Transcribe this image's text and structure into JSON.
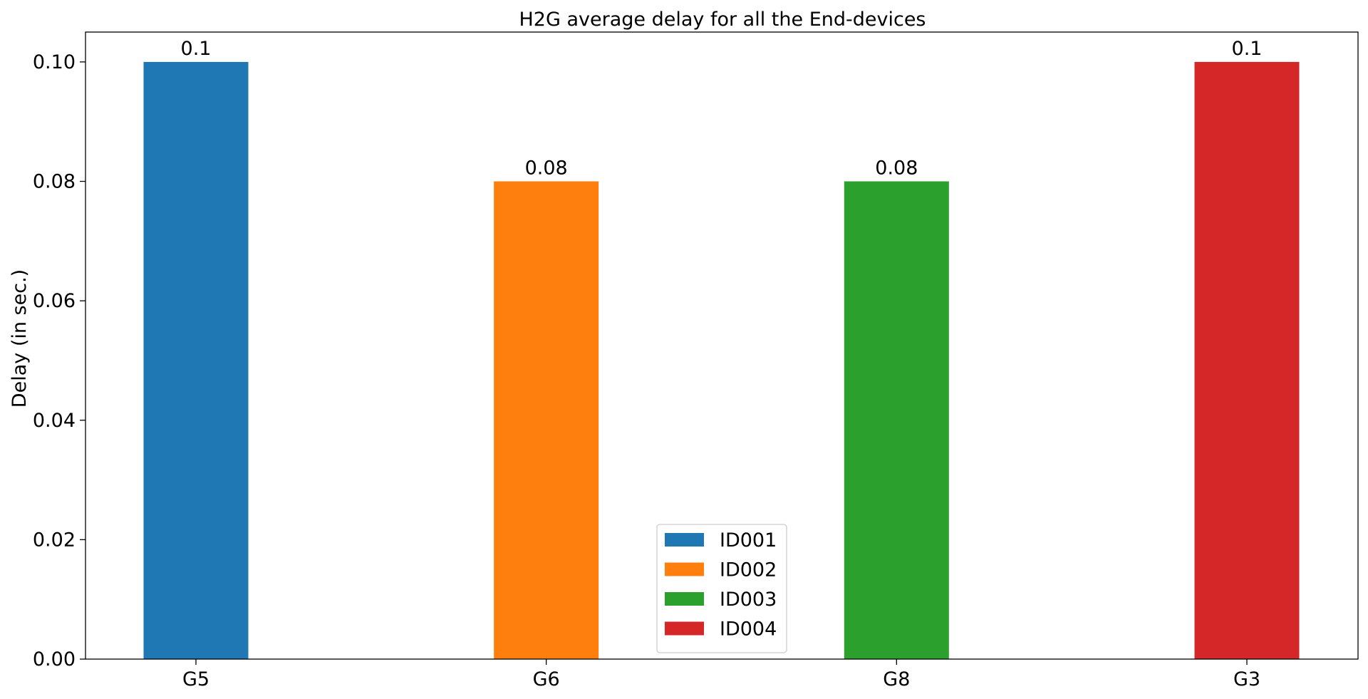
{
  "chart_data": {
    "type": "bar",
    "title": "H2G average delay for all the End-devices",
    "xlabel": "",
    "ylabel": "Delay (in sec.)",
    "ylim": [
      0,
      0.105
    ],
    "yticks": [
      0.0,
      0.02,
      0.04,
      0.06,
      0.08,
      0.1
    ],
    "ytick_labels": [
      "0.00",
      "0.02",
      "0.04",
      "0.06",
      "0.08",
      "0.10"
    ],
    "categories": [
      "G5",
      "G6",
      "G8",
      "G3"
    ],
    "series": [
      {
        "name": "ID001",
        "values": [
          0.1,
          null,
          null,
          null
        ],
        "color": "#1f77b4",
        "labels": [
          "0.1",
          "",
          "",
          ""
        ]
      },
      {
        "name": "ID002",
        "values": [
          null,
          0.08,
          null,
          null
        ],
        "color": "#ff7f0e",
        "labels": [
          "",
          "0.08",
          "",
          ""
        ]
      },
      {
        "name": "ID003",
        "values": [
          null,
          null,
          0.08,
          null
        ],
        "color": "#2ca02c",
        "labels": [
          "",
          "",
          "0.08",
          ""
        ]
      },
      {
        "name": "ID004",
        "values": [
          null,
          null,
          null,
          0.1
        ],
        "color": "#d62728",
        "labels": [
          "",
          "",
          "",
          "0.1"
        ]
      }
    ],
    "grid": false,
    "legend_position": "lower-center"
  }
}
